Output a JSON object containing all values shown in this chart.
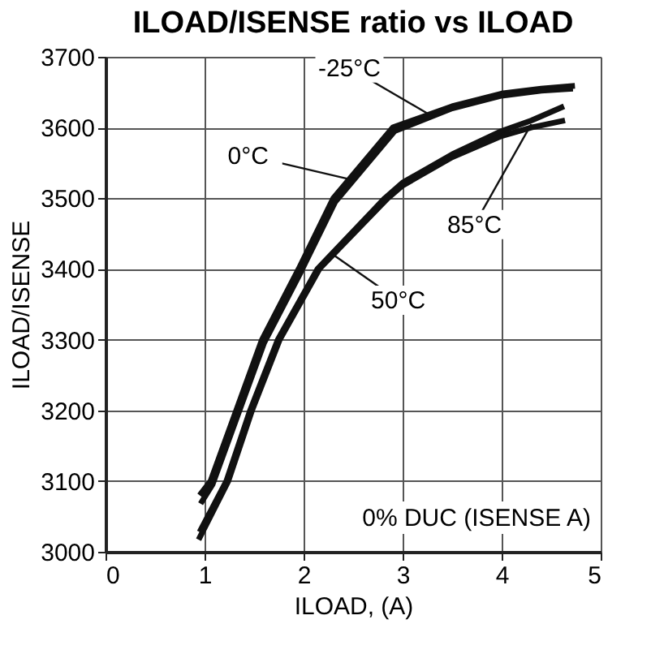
{
  "chart_data": {
    "type": "line",
    "title": "ILOAD/ISENSE ratio vs ILOAD",
    "xlabel": "ILOAD, (A)",
    "ylabel": "ILOAD/ISENSE",
    "xlim": [
      0,
      5
    ],
    "xticks": [
      0,
      1,
      2,
      3,
      4,
      5
    ],
    "ylim": [
      3000,
      3700
    ],
    "yticks": [
      3000,
      3100,
      3200,
      3300,
      3400,
      3500,
      3600,
      3700
    ],
    "grid": true,
    "line_style": "solid",
    "series": [
      {
        "color": "#111111",
        "x": [
          0.95,
          1.06,
          1.32,
          1.58,
          1.95,
          2.3,
          2.9,
          3.5,
          4,
          4.4,
          4.74
        ],
        "values": [
          3080,
          3100,
          3200,
          3300,
          3400,
          3500,
          3600,
          3630,
          3648,
          3655,
          3659
        ]
      },
      {
        "color": "#111111",
        "x": [
          0.96,
          1.08,
          1.34,
          1.6,
          1.97,
          2.32,
          2.92,
          3.5,
          4,
          4.4,
          4.72
        ],
        "values": [
          3068,
          3095,
          3195,
          3295,
          3395,
          3495,
          3595,
          3627,
          3645,
          3652,
          3655
        ]
      },
      {
        "color": "#111111",
        "x": [
          0.95,
          1.22,
          1.46,
          1.74,
          2.14,
          2.82,
          3,
          3.5,
          4,
          4.3,
          4.63
        ],
        "values": [
          3028,
          3100,
          3200,
          3300,
          3400,
          3500,
          3522,
          3562,
          3595,
          3610,
          3630
        ]
      },
      {
        "color": "#111111",
        "x": [
          0.94,
          1.24,
          1.48,
          1.76,
          2.16,
          2.85,
          3,
          3.5,
          4,
          4.3,
          4.64
        ],
        "values": [
          3017,
          3100,
          3200,
          3300,
          3400,
          3500,
          3518,
          3558,
          3588,
          3600,
          3610
        ]
      }
    ],
    "annotations": [
      {
        "text": "-25°C",
        "x": 3.25,
        "y": 3620
      },
      {
        "text": "0°C",
        "x": 2.49,
        "y": 3526
      },
      {
        "text": "85°C",
        "x": 4.3,
        "y": 3605
      },
      {
        "text": "50°C",
        "x": 2.3,
        "y": 3420
      },
      "0% DUC (ISENSE A)"
    ]
  }
}
